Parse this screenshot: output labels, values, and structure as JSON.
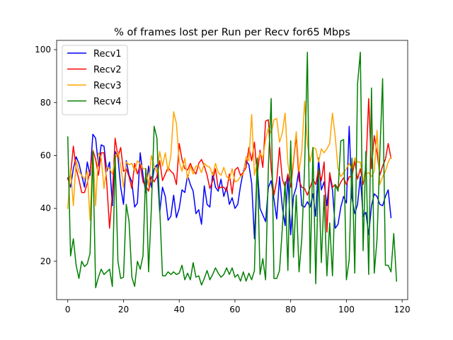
{
  "chart_data": {
    "type": "line",
    "title": "% of frames lost per Run per Recv for65 Mbps",
    "xlabel": "",
    "ylabel": "",
    "xlim": [
      -4,
      122
    ],
    "ylim": [
      5.5,
      103.5
    ],
    "xticks": [
      0,
      20,
      40,
      60,
      80,
      100,
      120
    ],
    "yticks": [
      20,
      40,
      60,
      80,
      100
    ],
    "grid": false,
    "legend_position": "top-left",
    "x_start": 0,
    "series": [
      {
        "name": "Recv1",
        "color": "#0000ff",
        "values": [
          51.5,
          48.0,
          55.0,
          59.5,
          57.0,
          52.5,
          48.0,
          57.5,
          52.5,
          68.0,
          66.5,
          56.0,
          64.0,
          63.5,
          54.0,
          57.5,
          41.0,
          61.5,
          59.5,
          48.0,
          41.5,
          58.0,
          52.5,
          50.0,
          40.5,
          42.0,
          61.0,
          52.5,
          46.0,
          56.0,
          48.0,
          55.0,
          56.5,
          38.5,
          48.0,
          44.5,
          35.5,
          37.0,
          45.0,
          36.5,
          40.0,
          47.0,
          46.0,
          52.5,
          49.0,
          46.5,
          38.0,
          39.5,
          34.0,
          48.5,
          41.5,
          40.5,
          53.5,
          48.0,
          46.5,
          51.0,
          44.5,
          48.0,
          41.5,
          44.0,
          40.0,
          41.5,
          48.5,
          54.0,
          58.0,
          56.5,
          49.5,
          28.5,
          56.0,
          40.0,
          37.5,
          35.0,
          48.0,
          50.5,
          43.5,
          36.0,
          52.0,
          40.5,
          33.5,
          52.0,
          30.0,
          44.5,
          48.0,
          55.0,
          41.0,
          40.5,
          42.5,
          40.5,
          45.5,
          37.0,
          59.0,
          47.0,
          50.0,
          41.0,
          52.0,
          47.0,
          32.5,
          34.0,
          40.5,
          44.5,
          42.0,
          71.0,
          44.0,
          38.0,
          41.5,
          52.0,
          37.0,
          38.5,
          30.0,
          41.0,
          45.5,
          44.5,
          41.5,
          41.0,
          44.5,
          47.0,
          36.5
        ]
      },
      {
        "name": "Recv2",
        "color": "#ff0000",
        "values": [
          51.0,
          52.5,
          63.5,
          55.0,
          51.0,
          46.0,
          46.0,
          49.5,
          54.0,
          62.0,
          58.5,
          52.5,
          61.0,
          61.0,
          49.5,
          32.5,
          45.5,
          66.5,
          59.5,
          63.0,
          54.0,
          55.0,
          52.0,
          47.5,
          57.0,
          53.0,
          56.5,
          50.0,
          48.5,
          46.5,
          52.0,
          50.0,
          52.0,
          58.0,
          50.5,
          53.0,
          55.5,
          54.0,
          53.0,
          49.0,
          64.5,
          58.5,
          55.0,
          54.5,
          57.0,
          54.5,
          53.0,
          57.0,
          58.5,
          56.0,
          52.5,
          47.5,
          50.5,
          55.0,
          47.5,
          48.0,
          48.0,
          46.5,
          53.0,
          45.5,
          54.5,
          55.5,
          52.5,
          53.5,
          55.5,
          63.0,
          58.0,
          65.0,
          52.5,
          62.0,
          55.5,
          73.0,
          73.5,
          55.0,
          45.0,
          50.5,
          63.0,
          51.0,
          48.0,
          53.0,
          48.0,
          57.5,
          67.5,
          50.5,
          48.0,
          47.5,
          45.0,
          48.0,
          51.0,
          49.0,
          55.0,
          50.5,
          57.5,
          31.0,
          53.5,
          48.0,
          49.0,
          47.5,
          50.0,
          51.5,
          49.0,
          52.0,
          52.0,
          58.0,
          51.0,
          55.0,
          49.0,
          55.5,
          81.5,
          55.0,
          67.5,
          61.0,
          52.5,
          56.0,
          58.5,
          64.5,
          59.0
        ]
      },
      {
        "name": "Recv3",
        "color": "#ffa500",
        "values": [
          40.0,
          55.0,
          41.0,
          58.0,
          54.0,
          52.5,
          51.0,
          54.0,
          35.5,
          62.0,
          41.0,
          61.0,
          59.0,
          47.5,
          55.5,
          55.0,
          53.0,
          58.5,
          61.5,
          56.0,
          48.0,
          57.5,
          56.5,
          57.0,
          54.0,
          58.0,
          57.0,
          55.0,
          55.0,
          48.5,
          60.0,
          56.0,
          53.5,
          61.5,
          56.0,
          61.0,
          54.0,
          60.0,
          76.5,
          72.0,
          57.5,
          54.0,
          59.0,
          51.0,
          56.0,
          53.0,
          56.0,
          56.0,
          53.5,
          57.0,
          56.0,
          55.5,
          52.5,
          57.0,
          53.5,
          52.5,
          55.5,
          52.0,
          51.0,
          55.0,
          50.0,
          50.5,
          52.0,
          53.0,
          59.5,
          58.0,
          75.5,
          52.5,
          57.5,
          61.0,
          59.0,
          66.0,
          70.5,
          68.5,
          73.5,
          74.0,
          65.0,
          68.5,
          76.0,
          57.0,
          50.5,
          58.5,
          69.0,
          54.0,
          61.5,
          80.5,
          64.5,
          57.5,
          63.0,
          62.5,
          57.5,
          62.5,
          61.0,
          62.5,
          64.5,
          76.0,
          67.0,
          55.0,
          52.0,
          53.5,
          55.0,
          57.0,
          54.5,
          59.0,
          57.5,
          57.5,
          50.5,
          53.0,
          53.5,
          52.0,
          54.0,
          69.5,
          49.0,
          52.0,
          54.0,
          57.5,
          59.5
        ]
      },
      {
        "name": "Recv4",
        "color": "#008000",
        "values": [
          67.0,
          22.0,
          28.5,
          18.5,
          13.5,
          20.0,
          18.0,
          19.0,
          23.0,
          61.5,
          10.0,
          14.0,
          17.0,
          15.0,
          16.0,
          17.0,
          10.5,
          60.0,
          20.0,
          13.5,
          14.0,
          41.5,
          35.0,
          14.0,
          10.5,
          20.0,
          17.0,
          22.0,
          55.0,
          16.0,
          40.0,
          71.0,
          66.5,
          40.0,
          14.5,
          14.5,
          16.0,
          15.0,
          16.0,
          15.0,
          15.5,
          18.5,
          13.0,
          15.5,
          13.0,
          19.5,
          14.0,
          14.5,
          11.0,
          13.5,
          16.5,
          13.0,
          15.0,
          17.5,
          15.5,
          14.0,
          15.0,
          17.5,
          15.0,
          17.5,
          14.0,
          15.0,
          12.5,
          16.0,
          12.5,
          15.5,
          13.0,
          16.5,
          59.0,
          15.0,
          21.0,
          13.0,
          55.5,
          81.5,
          13.5,
          13.5,
          16.5,
          32.5,
          50.0,
          16.5,
          65.5,
          21.5,
          45.0,
          16.0,
          28.5,
          55.5,
          99.0,
          15.5,
          63.0,
          11.5,
          55.0,
          19.5,
          45.0,
          14.5,
          34.5,
          14.5,
          49.0,
          46.5,
          65.5,
          66.0,
          13.0,
          20.5,
          59.0,
          15.5,
          87.0,
          99.0,
          24.0,
          61.5,
          15.0,
          85.5,
          15.5,
          28.5,
          60.5,
          89.0,
          18.5,
          18.5,
          16.0,
          30.5,
          12.5
        ]
      }
    ]
  }
}
